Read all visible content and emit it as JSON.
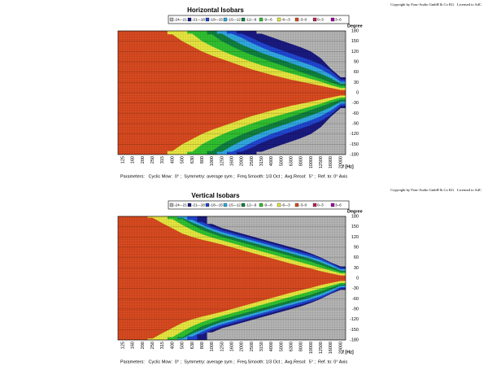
{
  "chart_data": [
    {
      "type": "isobar",
      "title": "Horizontal Isobars",
      "copyright": "Copyright by Four-Audio GmbH & Co KG   Licensed to AdC",
      "x_label": "f [Hz]",
      "y_label": "Degree",
      "parameters": "Parameters:   Cyclic Mow:  0° ;  Symmetry: average sym ;  Freq.Smooth: 1/3 Oct ;  Avg.Resol:  5° ;  Ref. to: 0° Axis",
      "categories": [
        "125",
        "160",
        "200",
        "250",
        "315",
        "400",
        "500",
        "630",
        "800",
        "1000",
        "1250",
        "1600",
        "2000",
        "2500",
        "3150",
        "4000",
        "5000",
        "6300",
        "8000",
        "10000",
        "12500",
        "16000",
        "20000"
      ],
      "ylim": [
        -180,
        180
      ],
      "yticks": [
        180,
        150,
        120,
        90,
        60,
        30,
        0,
        -30,
        -60,
        -90,
        -120,
        -150,
        -180
      ],
      "series": [
        {
          "name": "-24–-21",
          "color": "#b4b4b4",
          "values": [
            null,
            null,
            null,
            null,
            null,
            null,
            null,
            null,
            null,
            null,
            null,
            null,
            null,
            null,
            172,
            162,
            152,
            142,
            132,
            120,
            100,
            70,
            45
          ]
        },
        {
          "name": "-21–-18",
          "color": "#1a1a80",
          "values": [
            null,
            null,
            null,
            null,
            null,
            null,
            null,
            null,
            null,
            null,
            null,
            null,
            172,
            160,
            146,
            134,
            124,
            114,
            104,
            94,
            82,
            64,
            38
          ]
        },
        {
          "name": "-18–-15",
          "color": "#2046d0",
          "values": [
            null,
            null,
            null,
            null,
            null,
            null,
            null,
            null,
            null,
            null,
            null,
            172,
            160,
            145,
            132,
            120,
            110,
            100,
            90,
            80,
            68,
            52,
            32
          ]
        },
        {
          "name": "-15–-12",
          "color": "#30a8e0",
          "values": [
            null,
            null,
            null,
            null,
            null,
            null,
            null,
            null,
            null,
            null,
            172,
            155,
            140,
            128,
            116,
            106,
            96,
            86,
            76,
            66,
            55,
            42,
            26
          ]
        },
        {
          "name": "-12–-9",
          "color": "#108040",
          "values": [
            null,
            null,
            null,
            null,
            null,
            null,
            null,
            null,
            null,
            170,
            150,
            135,
            122,
            110,
            100,
            90,
            80,
            70,
            60,
            50,
            40,
            30,
            20
          ]
        },
        {
          "name": "-9–-6",
          "color": "#30c030",
          "values": [
            null,
            null,
            null,
            null,
            null,
            null,
            null,
            172,
            150,
            135,
            122,
            110,
            100,
            90,
            80,
            72,
            64,
            56,
            48,
            40,
            32,
            22,
            14
          ]
        },
        {
          "name": "-6–-3",
          "color": "#e6e640",
          "values": [
            null,
            null,
            null,
            null,
            null,
            170,
            150,
            135,
            120,
            108,
            98,
            88,
            78,
            68,
            60,
            52,
            45,
            38,
            32,
            26,
            20,
            14,
            8
          ]
        },
        {
          "name": "-3–0",
          "color": "#d84a20",
          "values": [
            0,
            0,
            0,
            0,
            0,
            0,
            0,
            0,
            0,
            0,
            0,
            0,
            0,
            0,
            0,
            0,
            0,
            0,
            0,
            0,
            0,
            0,
            0
          ]
        },
        {
          "name": "0–3",
          "color": "#c02060",
          "values": [
            null,
            null,
            null,
            null,
            null,
            null,
            null,
            null,
            null,
            null,
            null,
            null,
            null,
            null,
            null,
            null,
            null,
            null,
            null,
            null,
            null,
            null,
            null
          ]
        },
        {
          "name": "3–6",
          "color": "#a000a0",
          "values": [
            null,
            null,
            null,
            null,
            null,
            null,
            null,
            null,
            null,
            null,
            null,
            null,
            null,
            null,
            null,
            null,
            null,
            null,
            null,
            null,
            null,
            null,
            null
          ]
        }
      ]
    },
    {
      "type": "isobar",
      "title": "Vertical Isobars",
      "copyright": "Copyright by Four-Audio GmbH & Co KG   Licensed to AdC",
      "x_label": "f [Hz]",
      "y_label": "Degree",
      "parameters": "Parameters:   Cyclic Mow:  0° ;  Symmetry: average sym ;  Freq.Smooth: 1/3 Oct ;  Avg.Resol:  5° ;  Ref. to: 0° Axis",
      "categories": [
        "125",
        "160",
        "200",
        "250",
        "315",
        "400",
        "500",
        "630",
        "800",
        "1000",
        "1250",
        "1600",
        "2000",
        "2500",
        "3150",
        "4000",
        "5000",
        "6300",
        "8000",
        "10000",
        "12500",
        "16000",
        "20000"
      ],
      "ylim": [
        -180,
        180
      ],
      "yticks": [
        180,
        150,
        120,
        90,
        60,
        30,
        0,
        -30,
        -60,
        -90,
        -120,
        -150,
        -180
      ],
      "series": [
        {
          "name": "-24–-21",
          "color": "#b4b4b4",
          "values": [
            null,
            null,
            null,
            null,
            null,
            null,
            null,
            null,
            null,
            158,
            146,
            138,
            130,
            122,
            114,
            106,
            98,
            90,
            82,
            72,
            60,
            46,
            34
          ]
        },
        {
          "name": "-21–-18",
          "color": "#1a1a80",
          "values": [
            null,
            null,
            null,
            null,
            null,
            null,
            null,
            null,
            164,
            150,
            140,
            132,
            124,
            116,
            108,
            100,
            92,
            84,
            76,
            68,
            58,
            44,
            30
          ]
        },
        {
          "name": "-18–-15",
          "color": "#2046d0",
          "values": [
            null,
            null,
            null,
            null,
            null,
            null,
            null,
            170,
            156,
            144,
            134,
            126,
            118,
            110,
            102,
            94,
            86,
            78,
            70,
            62,
            52,
            40,
            26
          ]
        },
        {
          "name": "-15–-12",
          "color": "#30a8e0",
          "values": [
            null,
            null,
            null,
            null,
            null,
            null,
            176,
            162,
            150,
            138,
            128,
            120,
            112,
            104,
            96,
            88,
            80,
            72,
            64,
            56,
            46,
            34,
            22
          ]
        },
        {
          "name": "-12–-9",
          "color": "#108040",
          "values": [
            null,
            null,
            null,
            null,
            null,
            null,
            172,
            155,
            140,
            130,
            120,
            112,
            104,
            96,
            88,
            80,
            72,
            64,
            56,
            48,
            38,
            28,
            18
          ]
        },
        {
          "name": "-9–-6",
          "color": "#30c030",
          "values": [
            null,
            null,
            null,
            null,
            null,
            172,
            155,
            140,
            128,
            118,
            110,
            102,
            94,
            86,
            78,
            70,
            62,
            54,
            46,
            38,
            30,
            22,
            14
          ]
        },
        {
          "name": "-6–-3",
          "color": "#e6e640",
          "values": [
            null,
            null,
            null,
            176,
            160,
            145,
            130,
            120,
            112,
            105,
            98,
            90,
            82,
            74,
            66,
            58,
            50,
            42,
            35,
            28,
            20,
            14,
            8
          ]
        },
        {
          "name": "-3–0",
          "color": "#d84a20",
          "values": [
            0,
            0,
            0,
            0,
            0,
            0,
            0,
            0,
            0,
            0,
            0,
            0,
            0,
            0,
            0,
            0,
            0,
            0,
            0,
            0,
            0,
            0,
            0
          ]
        },
        {
          "name": "0–3",
          "color": "#c02060",
          "values": [
            null,
            null,
            null,
            null,
            null,
            null,
            null,
            null,
            null,
            null,
            null,
            null,
            null,
            null,
            null,
            null,
            null,
            null,
            null,
            null,
            null,
            null,
            null
          ]
        },
        {
          "name": "3–6",
          "color": "#a000a0",
          "values": [
            null,
            null,
            null,
            null,
            null,
            null,
            null,
            null,
            null,
            null,
            null,
            null,
            null,
            null,
            null,
            null,
            null,
            null,
            null,
            null,
            null,
            null,
            null
          ]
        }
      ]
    }
  ]
}
